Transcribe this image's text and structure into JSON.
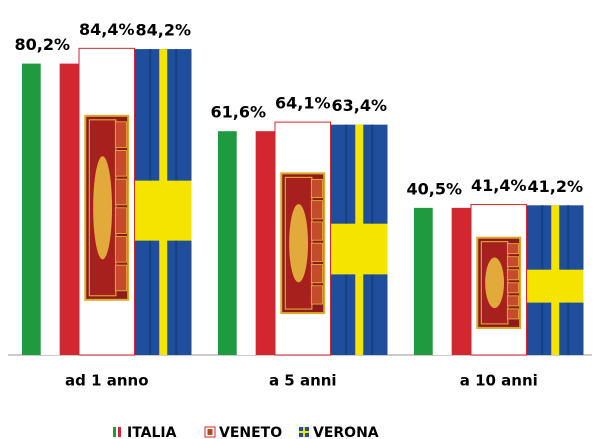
{
  "chart_data": {
    "type": "bar",
    "categories": [
      "ad 1 anno",
      "a 5 anni",
      "a 10 anni"
    ],
    "series": [
      {
        "name": "ITALIA",
        "color": "#1f9a3e",
        "values": [
          80.2,
          61.6,
          40.5
        ],
        "value_labels": [
          "80,2%",
          "61,6%",
          "40,5%"
        ]
      },
      {
        "name": "VENETO",
        "color": "#d22630",
        "values": [
          84.4,
          64.1,
          41.4
        ],
        "value_labels": [
          "84,4%",
          "64,1%",
          "41,4%"
        ]
      },
      {
        "name": "VERONA",
        "color": "#1f4f9c",
        "values": [
          84.2,
          63.4,
          41.2
        ],
        "value_labels": [
          "84,2%",
          "63,4%",
          "41,2%"
        ]
      }
    ],
    "ylim": [
      0,
      90
    ]
  }
}
